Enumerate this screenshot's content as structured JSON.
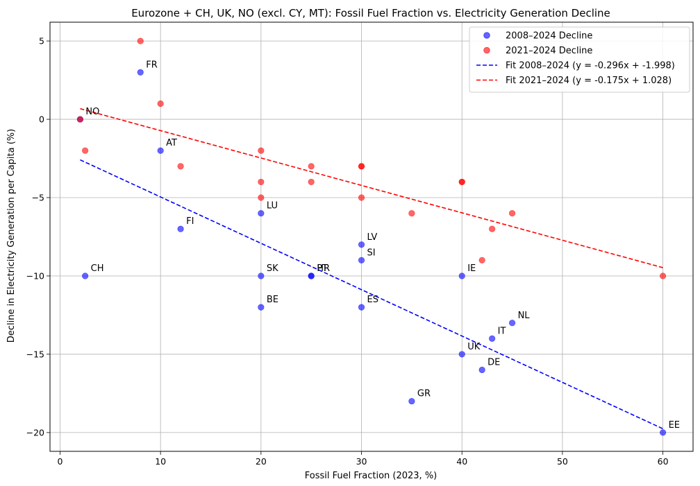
{
  "chart_data": {
    "type": "scatter",
    "title": "Eurozone + CH, UK, NO (excl. CY, MT): Fossil Fuel Fraction vs. Electricity Generation Decline",
    "xlabel": "Fossil Fuel Fraction (2023, %)",
    "ylabel": "Decline in Electricity Generation per Capita (%)",
    "xlim": [
      -1,
      63
    ],
    "ylim": [
      -21.2,
      6.2
    ],
    "xticks": [
      0,
      10,
      20,
      30,
      40,
      50,
      60
    ],
    "yticks": [
      -20,
      -15,
      -10,
      -5,
      0,
      5
    ],
    "ytick_labels": [
      "−20",
      "−15",
      "−10",
      "−5",
      "0",
      "5"
    ],
    "grid": true,
    "legend_position": "top-right",
    "series": [
      {
        "name": "2008–2024 Decline",
        "kind": "scatter",
        "color": "#0000ff",
        "points": [
          {
            "x": 2,
            "y": 0,
            "label": "NO"
          },
          {
            "x": 2.5,
            "y": -10,
            "label": "CH"
          },
          {
            "x": 8,
            "y": 3,
            "label": "FR"
          },
          {
            "x": 10,
            "y": -2,
            "label": "AT"
          },
          {
            "x": 12,
            "y": -7,
            "label": "FI"
          },
          {
            "x": 20,
            "y": -6,
            "label": "LU"
          },
          {
            "x": 20,
            "y": -10,
            "label": "SK"
          },
          {
            "x": 20,
            "y": -12,
            "label": "BE"
          },
          {
            "x": 25,
            "y": -10,
            "label": "PT"
          },
          {
            "x": 25,
            "y": -10,
            "label": "HR"
          },
          {
            "x": 30,
            "y": -8,
            "label": "LV"
          },
          {
            "x": 30,
            "y": -9,
            "label": "SI"
          },
          {
            "x": 30,
            "y": -12,
            "label": "ES"
          },
          {
            "x": 35,
            "y": -18,
            "label": "GR"
          },
          {
            "x": 40,
            "y": -10,
            "label": "IE"
          },
          {
            "x": 40,
            "y": -15,
            "label": "UK"
          },
          {
            "x": 42,
            "y": -16,
            "label": "DE"
          },
          {
            "x": 43,
            "y": -14,
            "label": "IT"
          },
          {
            "x": 45,
            "y": -13,
            "label": "NL"
          },
          {
            "x": 60,
            "y": -20,
            "label": "EE"
          }
        ]
      },
      {
        "name": "2021–2024 Decline",
        "kind": "scatter",
        "color": "#ff0000",
        "points": [
          {
            "x": 2,
            "y": 0
          },
          {
            "x": 2.5,
            "y": -2
          },
          {
            "x": 8,
            "y": 5
          },
          {
            "x": 10,
            "y": 1
          },
          {
            "x": 12,
            "y": -3
          },
          {
            "x": 20,
            "y": -2
          },
          {
            "x": 20,
            "y": -4
          },
          {
            "x": 20,
            "y": -5
          },
          {
            "x": 25,
            "y": -3
          },
          {
            "x": 25,
            "y": -4
          },
          {
            "x": 30,
            "y": -3
          },
          {
            "x": 30,
            "y": -3
          },
          {
            "x": 30,
            "y": -5
          },
          {
            "x": 35,
            "y": -6
          },
          {
            "x": 40,
            "y": -4
          },
          {
            "x": 40,
            "y": -4
          },
          {
            "x": 42,
            "y": -9
          },
          {
            "x": 43,
            "y": -7
          },
          {
            "x": 45,
            "y": -6
          },
          {
            "x": 60,
            "y": -10
          }
        ]
      },
      {
        "name": "Fit 2008–2024 (y = -0.296x + -1.998)",
        "kind": "fit",
        "color": "#0000ff",
        "slope": -0.296,
        "intercept": -1.998,
        "x_range": [
          2,
          60
        ]
      },
      {
        "name": "Fit 2021–2024 (y = -0.175x + 1.028)",
        "kind": "fit",
        "color": "#ff0000",
        "slope": -0.175,
        "intercept": 1.028,
        "x_range": [
          2,
          60
        ]
      }
    ]
  }
}
